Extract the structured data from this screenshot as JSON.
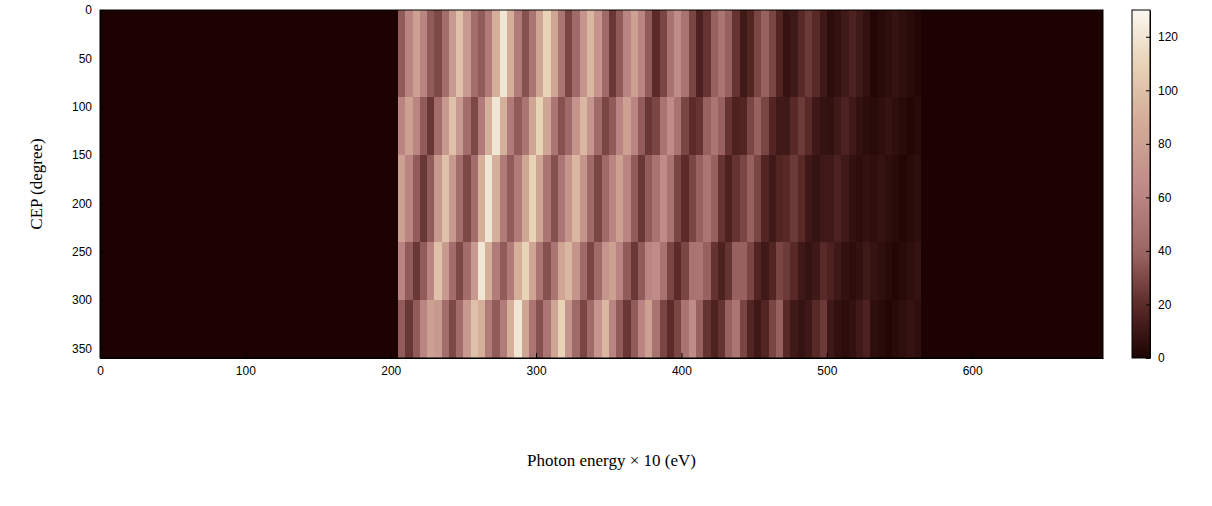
{
  "chart_data": {
    "type": "heatmap",
    "xlabel": "Photon energy × 10 (eV)",
    "ylabel": "CEP (degree)",
    "xlim": [
      0,
      690
    ],
    "xticks": [
      0,
      100,
      200,
      300,
      400,
      500,
      600
    ],
    "ylim": [
      0,
      360
    ],
    "yticks": [
      0,
      50,
      100,
      150,
      200,
      250,
      300,
      350
    ],
    "zlim": [
      0,
      130
    ],
    "zticks": [
      0,
      20,
      40,
      60,
      80,
      100,
      120
    ],
    "x_edges": [
      0,
      205,
      210,
      215,
      220,
      225,
      230,
      235,
      240,
      245,
      250,
      255,
      260,
      265,
      270,
      275,
      280,
      285,
      290,
      295,
      300,
      305,
      310,
      315,
      320,
      325,
      330,
      335,
      340,
      345,
      350,
      355,
      360,
      365,
      370,
      375,
      380,
      385,
      390,
      395,
      400,
      405,
      410,
      415,
      420,
      425,
      430,
      435,
      440,
      445,
      450,
      455,
      460,
      465,
      470,
      475,
      480,
      485,
      490,
      495,
      500,
      505,
      510,
      515,
      520,
      525,
      530,
      535,
      540,
      545,
      550,
      555,
      560,
      565,
      690
    ],
    "y_edges": [
      0,
      30,
      60,
      90,
      120,
      150,
      180,
      210,
      240,
      270,
      300,
      330,
      360
    ],
    "z": [
      [
        0,
        36,
        60,
        80,
        60,
        36,
        30,
        45,
        75,
        100,
        75,
        45,
        36,
        54,
        90,
        120,
        90,
        54,
        33,
        50,
        83,
        110,
        83,
        50,
        29,
        43,
        71,
        95,
        71,
        43,
        24,
        36,
        60,
        80,
        60,
        36,
        20,
        29,
        49,
        65,
        49,
        29,
        15,
        23,
        38,
        50,
        38,
        23,
        11,
        17,
        29,
        38,
        29,
        17,
        8,
        11,
        19,
        25,
        19,
        11,
        5,
        7,
        11,
        15,
        11,
        7,
        2,
        4,
        6,
        8,
        6,
        4,
        2,
        0
      ],
      [
        0,
        36,
        60,
        80,
        60,
        36,
        30,
        45,
        75,
        100,
        75,
        45,
        36,
        54,
        90,
        120,
        90,
        54,
        33,
        50,
        83,
        110,
        83,
        50,
        29,
        43,
        71,
        95,
        71,
        43,
        24,
        36,
        60,
        80,
        60,
        36,
        20,
        29,
        49,
        65,
        49,
        29,
        15,
        23,
        38,
        50,
        38,
        23,
        11,
        17,
        29,
        38,
        29,
        17,
        8,
        11,
        19,
        25,
        19,
        11,
        5,
        7,
        11,
        15,
        11,
        7,
        2,
        4,
        6,
        8,
        6,
        4,
        2,
        0
      ],
      [
        0,
        36,
        60,
        80,
        60,
        36,
        30,
        45,
        75,
        100,
        75,
        45,
        36,
        54,
        90,
        120,
        90,
        54,
        33,
        50,
        83,
        110,
        83,
        50,
        29,
        43,
        71,
        95,
        71,
        43,
        24,
        36,
        60,
        80,
        60,
        36,
        20,
        29,
        49,
        65,
        49,
        29,
        15,
        23,
        38,
        50,
        38,
        23,
        11,
        17,
        29,
        38,
        29,
        17,
        8,
        11,
        19,
        25,
        19,
        11,
        5,
        7,
        11,
        15,
        11,
        7,
        2,
        4,
        6,
        8,
        6,
        4,
        2,
        0
      ],
      [
        0,
        60,
        80,
        60,
        36,
        24,
        45,
        75,
        100,
        75,
        45,
        30,
        54,
        90,
        120,
        90,
        54,
        36,
        50,
        83,
        110,
        83,
        50,
        33,
        43,
        71,
        95,
        71,
        43,
        29,
        36,
        60,
        80,
        60,
        36,
        24,
        29,
        49,
        65,
        49,
        29,
        20,
        23,
        38,
        50,
        38,
        23,
        15,
        17,
        29,
        38,
        29,
        17,
        11,
        11,
        19,
        25,
        19,
        11,
        8,
        7,
        11,
        15,
        11,
        7,
        5,
        4,
        6,
        8,
        6,
        4,
        2,
        4,
        0
      ],
      [
        0,
        60,
        80,
        60,
        36,
        24,
        45,
        75,
        100,
        75,
        45,
        30,
        54,
        90,
        120,
        90,
        54,
        36,
        50,
        83,
        110,
        83,
        50,
        33,
        43,
        71,
        95,
        71,
        43,
        29,
        36,
        60,
        80,
        60,
        36,
        24,
        29,
        49,
        65,
        49,
        29,
        20,
        23,
        38,
        50,
        38,
        23,
        15,
        17,
        29,
        38,
        29,
        17,
        11,
        11,
        19,
        25,
        19,
        11,
        8,
        7,
        11,
        15,
        11,
        7,
        5,
        4,
        6,
        8,
        6,
        4,
        2,
        4,
        0
      ],
      [
        0,
        80,
        60,
        36,
        24,
        36,
        75,
        100,
        75,
        45,
        30,
        45,
        90,
        120,
        90,
        54,
        36,
        54,
        83,
        110,
        83,
        50,
        33,
        50,
        71,
        95,
        71,
        43,
        29,
        43,
        60,
        80,
        60,
        36,
        24,
        36,
        49,
        65,
        49,
        29,
        20,
        29,
        38,
        50,
        38,
        23,
        15,
        23,
        29,
        38,
        29,
        17,
        11,
        17,
        19,
        25,
        19,
        11,
        8,
        11,
        11,
        15,
        11,
        7,
        5,
        7,
        6,
        8,
        6,
        4,
        2,
        4,
        6,
        0
      ],
      [
        0,
        80,
        60,
        36,
        24,
        36,
        75,
        100,
        75,
        45,
        30,
        45,
        90,
        120,
        90,
        54,
        36,
        54,
        83,
        110,
        83,
        50,
        33,
        50,
        71,
        95,
        71,
        43,
        29,
        43,
        60,
        80,
        60,
        36,
        24,
        36,
        49,
        65,
        49,
        29,
        20,
        29,
        38,
        50,
        38,
        23,
        15,
        23,
        29,
        38,
        29,
        17,
        11,
        17,
        19,
        25,
        19,
        11,
        8,
        11,
        11,
        15,
        11,
        7,
        5,
        7,
        6,
        8,
        6,
        4,
        2,
        4,
        6,
        0
      ],
      [
        0,
        80,
        60,
        36,
        24,
        36,
        75,
        100,
        75,
        45,
        30,
        45,
        90,
        120,
        90,
        54,
        36,
        54,
        83,
        110,
        83,
        50,
        33,
        50,
        71,
        95,
        71,
        43,
        29,
        43,
        60,
        80,
        60,
        36,
        24,
        36,
        49,
        65,
        49,
        29,
        20,
        29,
        38,
        50,
        38,
        23,
        15,
        23,
        29,
        38,
        29,
        17,
        11,
        17,
        19,
        25,
        19,
        11,
        8,
        11,
        11,
        15,
        11,
        7,
        5,
        7,
        6,
        8,
        6,
        4,
        2,
        4,
        6,
        0
      ],
      [
        0,
        60,
        36,
        24,
        36,
        60,
        100,
        75,
        45,
        30,
        45,
        75,
        120,
        90,
        54,
        36,
        54,
        90,
        110,
        83,
        50,
        33,
        50,
        83,
        95,
        71,
        43,
        29,
        43,
        71,
        80,
        60,
        36,
        24,
        36,
        60,
        65,
        49,
        29,
        20,
        29,
        49,
        50,
        38,
        23,
        15,
        23,
        38,
        38,
        29,
        17,
        11,
        17,
        29,
        25,
        19,
        11,
        8,
        11,
        19,
        15,
        11,
        7,
        5,
        7,
        11,
        8,
        6,
        4,
        2,
        4,
        6,
        8,
        0
      ],
      [
        0,
        60,
        36,
        24,
        36,
        60,
        100,
        75,
        45,
        30,
        45,
        75,
        120,
        90,
        54,
        36,
        54,
        90,
        110,
        83,
        50,
        33,
        50,
        83,
        95,
        71,
        43,
        29,
        43,
        71,
        80,
        60,
        36,
        24,
        36,
        60,
        65,
        49,
        29,
        20,
        29,
        49,
        50,
        38,
        23,
        15,
        23,
        38,
        38,
        29,
        17,
        11,
        17,
        29,
        25,
        19,
        11,
        8,
        11,
        19,
        15,
        11,
        7,
        5,
        7,
        11,
        8,
        6,
        4,
        2,
        4,
        6,
        8,
        0
      ],
      [
        0,
        36,
        24,
        36,
        60,
        80,
        75,
        45,
        30,
        45,
        75,
        100,
        90,
        54,
        36,
        54,
        90,
        120,
        83,
        50,
        33,
        50,
        83,
        110,
        71,
        43,
        29,
        43,
        71,
        95,
        60,
        36,
        24,
        36,
        60,
        80,
        49,
        29,
        20,
        29,
        49,
        65,
        38,
        23,
        15,
        23,
        38,
        50,
        29,
        17,
        11,
        17,
        29,
        38,
        19,
        11,
        8,
        11,
        19,
        25,
        11,
        7,
        5,
        7,
        11,
        15,
        6,
        4,
        2,
        4,
        6,
        8,
        6,
        0
      ],
      [
        0,
        36,
        24,
        36,
        60,
        80,
        75,
        45,
        30,
        45,
        75,
        100,
        90,
        54,
        36,
        54,
        90,
        120,
        83,
        50,
        33,
        50,
        83,
        110,
        71,
        43,
        29,
        43,
        71,
        95,
        60,
        36,
        24,
        36,
        60,
        80,
        49,
        29,
        20,
        29,
        49,
        65,
        38,
        23,
        15,
        23,
        38,
        50,
        29,
        17,
        11,
        17,
        29,
        38,
        19,
        11,
        8,
        11,
        19,
        25,
        11,
        7,
        5,
        7,
        11,
        15,
        6,
        4,
        2,
        4,
        6,
        8,
        6,
        0
      ]
    ]
  }
}
